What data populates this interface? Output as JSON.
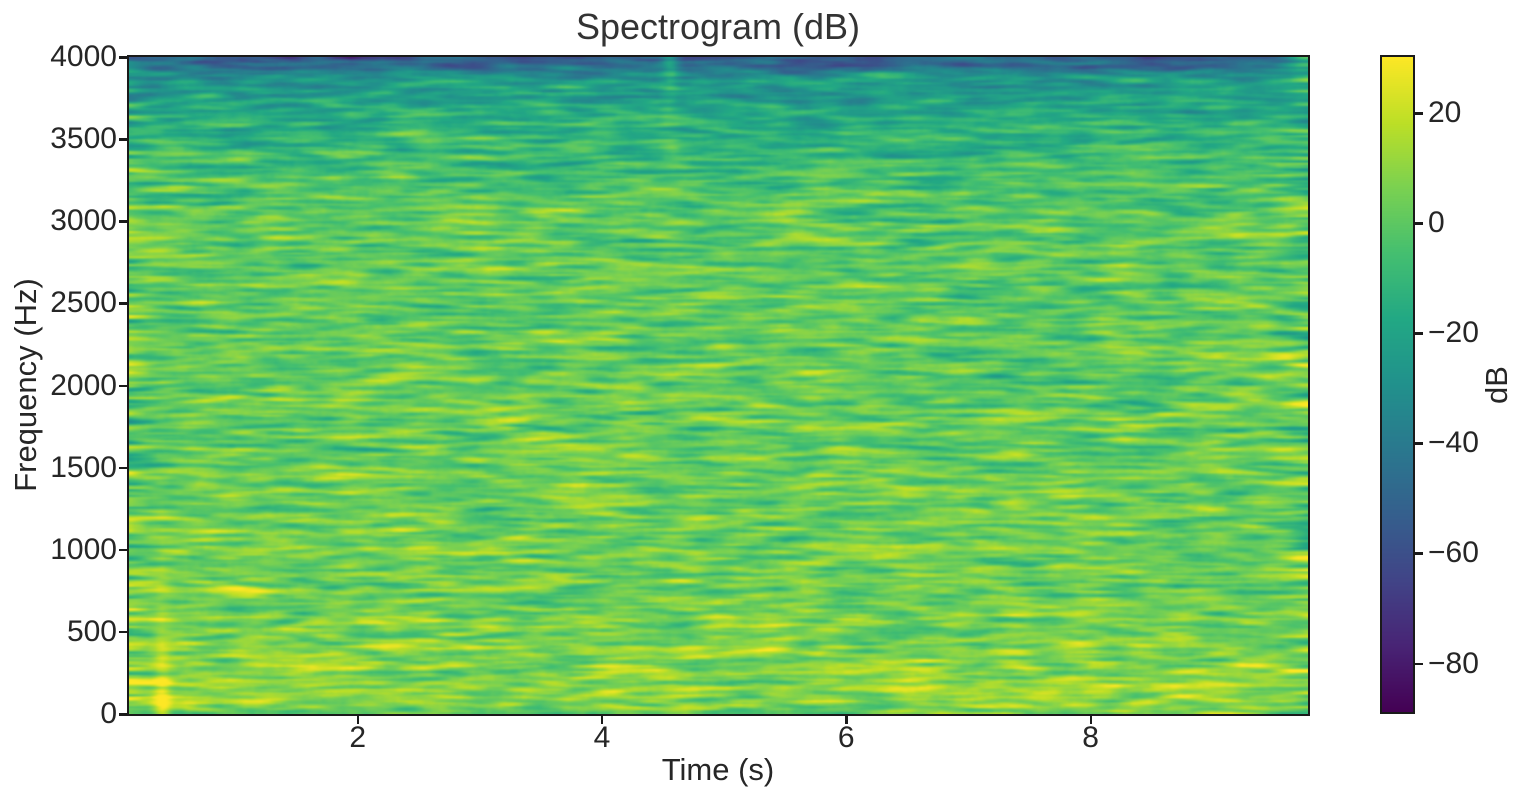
{
  "chart_data": {
    "type": "heatmap",
    "subtype": "spectrogram",
    "title": "Spectrogram (dB)",
    "xlabel": "Time (s)",
    "ylabel": "Frequency (Hz)",
    "colorbar_label": "dB",
    "grid": "off",
    "legend": "none",
    "x_range_s": [
      0.128,
      9.78
    ],
    "y_range_hz": [
      0,
      4000
    ],
    "x_ticks": {
      "values": [
        2,
        4,
        6,
        8
      ],
      "labels": [
        "2",
        "4",
        "6",
        "8"
      ]
    },
    "y_ticks": {
      "values": [
        0,
        500,
        1000,
        1500,
        2000,
        2500,
        3000,
        3500,
        4000
      ],
      "labels": [
        "0",
        "500",
        "1000",
        "1500",
        "2000",
        "2500",
        "3000",
        "3500",
        "4000"
      ]
    },
    "color_range_db": [
      -88.8,
      30.2
    ],
    "colorbar_ticks": {
      "values": [
        20,
        0,
        -20,
        -40,
        -60,
        -80
      ],
      "labels": [
        "20",
        "0",
        "−20",
        "−40",
        "−60",
        "−80"
      ]
    },
    "colormap": "viridis",
    "colormap_stops": [
      [
        0.0,
        68,
        1,
        84
      ],
      [
        0.1,
        72,
        36,
        117
      ],
      [
        0.2,
        65,
        68,
        135
      ],
      [
        0.3,
        53,
        95,
        141
      ],
      [
        0.4,
        42,
        120,
        142
      ],
      [
        0.5,
        33,
        145,
        140
      ],
      [
        0.6,
        34,
        168,
        132
      ],
      [
        0.7,
        68,
        191,
        112
      ],
      [
        0.8,
        122,
        209,
        81
      ],
      [
        0.9,
        189,
        223,
        38
      ],
      [
        1.0,
        253,
        231,
        37
      ]
    ],
    "render": {
      "seed": 1337,
      "grid_time": 300,
      "grid_freq": 336,
      "noise_std_db": 7,
      "base_profile": {
        "floor_db": 5.5,
        "slope_db": -8,
        "rolloff": {
          "start": 0.76,
          "end": 1.02,
          "amp_db": -24
        },
        "nyquist_dip": {
          "start": 0.962,
          "end": 1.0,
          "amp_db": -26
        },
        "dc_dip": {
          "decay_hz": 30,
          "amp_db": -10
        }
      },
      "features": [
        {
          "name": "broadband-onset",
          "t": 0.4,
          "t_sigma": 0.045,
          "amp_db": 26,
          "f_decay_hz": 450
        },
        {
          "name": "low-frequency-band",
          "amp_db": 4.5,
          "f_center_hz": 170,
          "f_sigma_hz": 170
        },
        {
          "name": "mid-high-tone-burst",
          "t": 4.58,
          "t_sigma": 0.07,
          "amp_db": 11,
          "f_center_hz": 3430,
          "f_sigma_hz": 70
        },
        {
          "name": "top-band-burst",
          "t": 4.56,
          "t_sigma": 0.05,
          "amp_db": 32,
          "f_top_decay_hz": 200
        },
        {
          "name": "right-edge-high-burst",
          "t": 9.76,
          "t_sigma": 0.12,
          "amp_db": 30,
          "f_top_decay_hz": 260
        },
        {
          "name": "low-tone-blip",
          "t": 5.33,
          "t_sigma": 0.1,
          "amp_db": 8,
          "f_center_hz": 560,
          "f_sigma_hz": 55
        }
      ]
    }
  }
}
